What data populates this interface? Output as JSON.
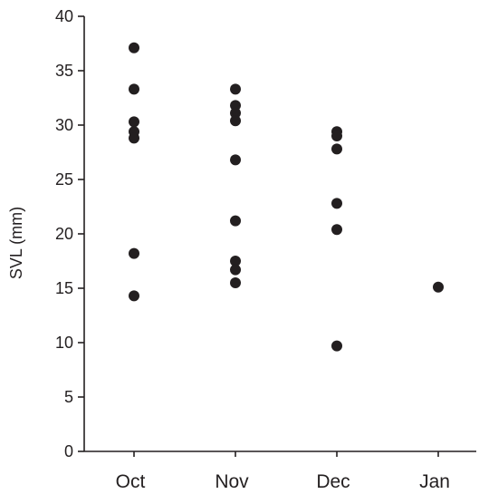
{
  "chart_data": {
    "type": "scatter",
    "categories": [
      "Oct",
      "Nov",
      "Dec",
      "Jan"
    ],
    "ylabel": "SVL (mm)",
    "xlabel": "",
    "ylim": [
      0,
      40
    ],
    "yticks": [
      0,
      5,
      10,
      15,
      20,
      25,
      30,
      35,
      40
    ],
    "grid": false,
    "marker_color": "#231f20",
    "points": [
      {
        "category": "Oct",
        "y": 37.1
      },
      {
        "category": "Oct",
        "y": 33.3
      },
      {
        "category": "Oct",
        "y": 30.3
      },
      {
        "category": "Oct",
        "y": 29.4
      },
      {
        "category": "Oct",
        "y": 28.8
      },
      {
        "category": "Oct",
        "y": 18.2
      },
      {
        "category": "Oct",
        "y": 14.3
      },
      {
        "category": "Nov",
        "y": 33.3
      },
      {
        "category": "Nov",
        "y": 31.8
      },
      {
        "category": "Nov",
        "y": 31.1
      },
      {
        "category": "Nov",
        "y": 30.4
      },
      {
        "category": "Nov",
        "y": 26.8
      },
      {
        "category": "Nov",
        "y": 21.2
      },
      {
        "category": "Nov",
        "y": 17.5
      },
      {
        "category": "Nov",
        "y": 16.7
      },
      {
        "category": "Nov",
        "y": 15.5
      },
      {
        "category": "Dec",
        "y": 29.4
      },
      {
        "category": "Dec",
        "y": 29.0
      },
      {
        "category": "Dec",
        "y": 27.8
      },
      {
        "category": "Dec",
        "y": 22.8
      },
      {
        "category": "Dec",
        "y": 20.4
      },
      {
        "category": "Dec",
        "y": 9.7
      },
      {
        "category": "Jan",
        "y": 15.1
      }
    ]
  }
}
